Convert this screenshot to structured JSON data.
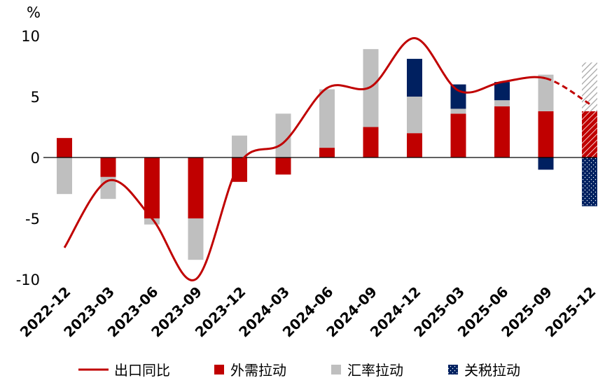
{
  "chart_data": {
    "type": "bar",
    "ylabel": "%",
    "ylim": [
      -10,
      10
    ],
    "yticks": [
      "10",
      "5",
      "0",
      "-5",
      "-10"
    ],
    "categories": [
      "2022-12",
      "2023-03",
      "2023-06",
      "2023-09",
      "2023-12",
      "2024-03",
      "2024-06",
      "2024-09",
      "2024-12",
      "2025-03",
      "2025-06",
      "2025-09",
      "2025-12"
    ],
    "series": [
      {
        "name": "外需拉动",
        "color": "#c00000",
        "values": [
          1.6,
          -1.6,
          -5.0,
          -5.0,
          -2.0,
          -1.4,
          0.8,
          2.5,
          2.0,
          3.6,
          4.2,
          3.8,
          3.8
        ]
      },
      {
        "name": "汇率拉动",
        "color": "#bfbfbf",
        "values": [
          -3.0,
          -1.8,
          -0.5,
          -3.4,
          1.8,
          3.6,
          4.8,
          6.4,
          3.0,
          0.4,
          0.5,
          3.0,
          4.0
        ]
      },
      {
        "name": "关税拉动",
        "color": "#002060",
        "values": [
          0,
          0,
          0,
          0,
          0,
          0,
          0,
          0,
          3.1,
          2.0,
          1.5,
          -1.0,
          -4.0
        ]
      },
      {
        "name": "出口同比",
        "type": "line",
        "color": "#c00000",
        "values": [
          -7.4,
          -1.9,
          -5.0,
          -10.0,
          -0.5,
          1.2,
          5.7,
          5.8,
          9.8,
          5.5,
          6.2,
          6.5,
          4.4
        ]
      }
    ],
    "legend_position": "bottom",
    "forecast_category": "2025-12"
  }
}
